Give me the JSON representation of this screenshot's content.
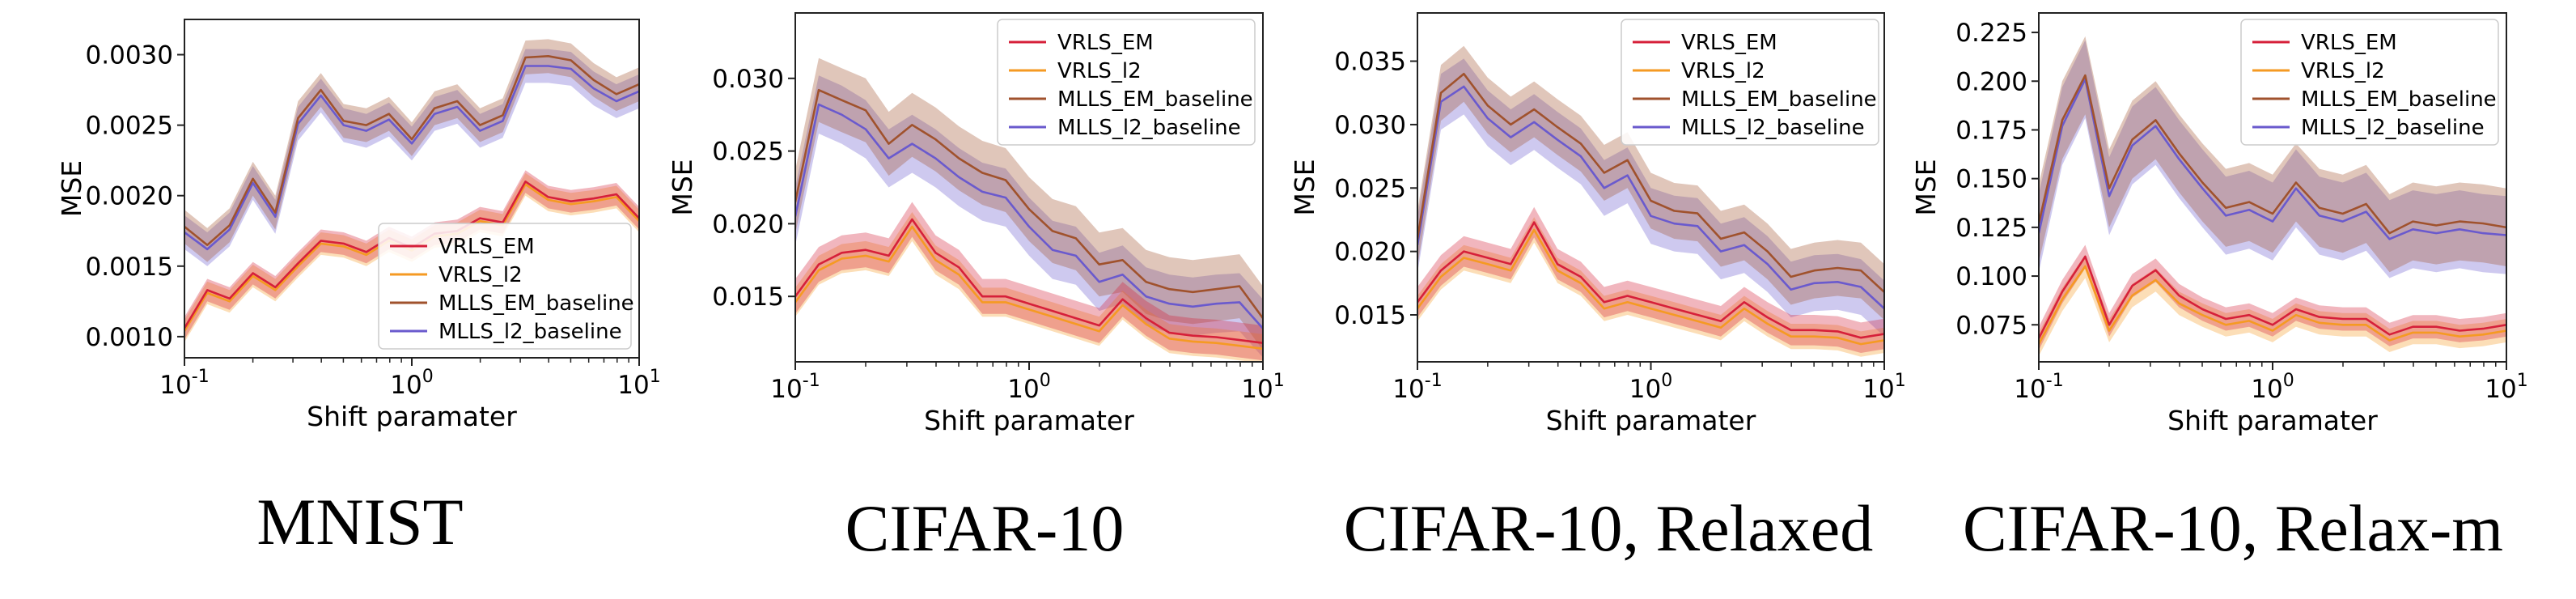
{
  "figure": {
    "captions": [
      "MNIST",
      "CIFAR-10",
      "CIFAR-10, Relaxed",
      "CIFAR-10, Relax-m"
    ]
  },
  "series_style": {
    "VRLS_EM": "#d6203a",
    "VRLS_l2": "#f59a23",
    "MLLS_EM_baseline": "#a0522d",
    "MLLS_l2_baseline": "#6a5acd"
  },
  "chart_data": [
    {
      "type": "line",
      "title": "MNIST",
      "xlabel": "Shift paramater",
      "ylabel": "MSE",
      "xscale": "log",
      "xlim": [
        0.1,
        10
      ],
      "ylim": [
        0.00085,
        0.00325
      ],
      "yticks": [
        "0.0010",
        "0.0015",
        "0.0020",
        "0.0025",
        "0.0030"
      ],
      "ytick_values": [
        0.001,
        0.0015,
        0.002,
        0.0025,
        0.003
      ],
      "xticks": [
        "10^-1",
        "10^0",
        "10^1"
      ],
      "legend": "lower-right",
      "x": [
        0.1,
        0.126,
        0.158,
        0.2,
        0.251,
        0.316,
        0.398,
        0.501,
        0.631,
        0.794,
        1.0,
        1.259,
        1.585,
        1.995,
        2.512,
        3.162,
        3.981,
        5.012,
        6.31,
        7.943,
        10.0
      ],
      "series": [
        {
          "name": "VRLS_EM",
          "values": [
            0.00106,
            0.00133,
            0.00127,
            0.00145,
            0.00135,
            0.00152,
            0.00168,
            0.00166,
            0.0016,
            0.0017,
            0.00163,
            0.00173,
            0.00175,
            0.00184,
            0.00181,
            0.0021,
            0.00199,
            0.00196,
            0.00198,
            0.00201,
            0.00184
          ],
          "band": 8e-05
        },
        {
          "name": "VRLS_l2",
          "values": [
            0.00104,
            0.00131,
            0.00125,
            0.00143,
            0.00133,
            0.0015,
            0.00166,
            0.00164,
            0.00158,
            0.00168,
            0.00161,
            0.00171,
            0.00173,
            0.00182,
            0.00179,
            0.00208,
            0.00197,
            0.00194,
            0.00196,
            0.00199,
            0.00182
          ],
          "band": 8e-05
        },
        {
          "name": "MLLS_EM_baseline",
          "values": [
            0.00178,
            0.00165,
            0.00179,
            0.00212,
            0.00188,
            0.00255,
            0.00275,
            0.00253,
            0.0025,
            0.00258,
            0.0024,
            0.00262,
            0.00267,
            0.0025,
            0.00257,
            0.00298,
            0.00299,
            0.00296,
            0.00282,
            0.00272,
            0.00279
          ],
          "band": 0.00012
        },
        {
          "name": "MLLS_l2_baseline",
          "values": [
            0.00174,
            0.00162,
            0.00176,
            0.00209,
            0.00185,
            0.00251,
            0.00271,
            0.0025,
            0.00246,
            0.00254,
            0.00237,
            0.00258,
            0.00263,
            0.00246,
            0.00253,
            0.00292,
            0.00292,
            0.0029,
            0.00276,
            0.00267,
            0.00274
          ],
          "band": 0.00012
        }
      ]
    },
    {
      "type": "line",
      "title": "CIFAR-10",
      "xlabel": "Shift paramater",
      "ylabel": "MSE",
      "xscale": "log",
      "xlim": [
        0.1,
        10
      ],
      "ylim": [
        0.0105,
        0.0345
      ],
      "yticks": [
        "0.015",
        "0.020",
        "0.025",
        "0.030"
      ],
      "ytick_values": [
        0.015,
        0.02,
        0.025,
        0.03
      ],
      "xticks": [
        "10^-1",
        "10^0",
        "10^1"
      ],
      "legend": "top-right",
      "x": [
        0.1,
        0.126,
        0.158,
        0.2,
        0.251,
        0.316,
        0.398,
        0.501,
        0.631,
        0.794,
        1.0,
        1.259,
        1.585,
        1.995,
        2.512,
        3.162,
        3.981,
        5.012,
        6.31,
        7.943,
        10.0
      ],
      "series": [
        {
          "name": "VRLS_EM",
          "values": [
            0.015,
            0.0172,
            0.018,
            0.0182,
            0.0178,
            0.0203,
            0.018,
            0.017,
            0.015,
            0.015,
            0.0145,
            0.014,
            0.0135,
            0.013,
            0.0148,
            0.0135,
            0.0125,
            0.0123,
            0.0122,
            0.012,
            0.0118
          ],
          "band": 0.0012
        },
        {
          "name": "VRLS_l2",
          "values": [
            0.0146,
            0.0168,
            0.0176,
            0.0178,
            0.0174,
            0.0198,
            0.0175,
            0.0165,
            0.0146,
            0.0146,
            0.0141,
            0.0136,
            0.0131,
            0.0126,
            0.0144,
            0.0131,
            0.0121,
            0.0119,
            0.0118,
            0.0116,
            0.0114
          ],
          "band": 0.001
        },
        {
          "name": "MLLS_EM_baseline",
          "values": [
            0.0215,
            0.0292,
            0.0285,
            0.0278,
            0.0255,
            0.0268,
            0.0258,
            0.0245,
            0.0235,
            0.023,
            0.021,
            0.0195,
            0.019,
            0.0172,
            0.0175,
            0.016,
            0.0155,
            0.0153,
            0.0155,
            0.0157,
            0.0135
          ],
          "band": 0.0022
        },
        {
          "name": "MLLS_l2_baseline",
          "values": [
            0.0205,
            0.0282,
            0.0275,
            0.0265,
            0.0245,
            0.0255,
            0.0245,
            0.0232,
            0.0222,
            0.0218,
            0.0198,
            0.0182,
            0.0178,
            0.016,
            0.0165,
            0.015,
            0.0145,
            0.0143,
            0.0145,
            0.0146,
            0.0128
          ],
          "band": 0.002
        }
      ]
    },
    {
      "type": "line",
      "title": "CIFAR-10, Relaxed",
      "xlabel": "Shift paramater",
      "ylabel": "MSE",
      "xscale": "log",
      "xlim": [
        0.1,
        10
      ],
      "ylim": [
        0.0113,
        0.0388
      ],
      "yticks": [
        "0.015",
        "0.020",
        "0.025",
        "0.030",
        "0.035"
      ],
      "ytick_values": [
        0.015,
        0.02,
        0.025,
        0.03,
        0.035
      ],
      "xticks": [
        "10^-1",
        "10^0",
        "10^1"
      ],
      "legend": "top-right",
      "x": [
        0.1,
        0.126,
        0.158,
        0.2,
        0.251,
        0.316,
        0.398,
        0.501,
        0.631,
        0.794,
        1.0,
        1.259,
        1.585,
        1.995,
        2.512,
        3.162,
        3.981,
        5.012,
        6.31,
        7.943,
        10.0
      ],
      "series": [
        {
          "name": "VRLS_EM",
          "values": [
            0.016,
            0.0185,
            0.02,
            0.0195,
            0.019,
            0.0223,
            0.019,
            0.018,
            0.016,
            0.0165,
            0.016,
            0.0155,
            0.015,
            0.0145,
            0.016,
            0.0148,
            0.0138,
            0.0138,
            0.0137,
            0.0132,
            0.0135
          ],
          "band": 0.0012
        },
        {
          "name": "VRLS_l2",
          "values": [
            0.0155,
            0.018,
            0.0195,
            0.019,
            0.0185,
            0.0217,
            0.0185,
            0.0175,
            0.0155,
            0.016,
            0.0155,
            0.015,
            0.0145,
            0.014,
            0.0155,
            0.0143,
            0.0133,
            0.0133,
            0.0132,
            0.0127,
            0.013
          ],
          "band": 0.001
        },
        {
          "name": "MLLS_EM_baseline",
          "values": [
            0.021,
            0.0325,
            0.034,
            0.0315,
            0.03,
            0.0312,
            0.0298,
            0.0285,
            0.0262,
            0.0272,
            0.024,
            0.0232,
            0.023,
            0.021,
            0.0215,
            0.02,
            0.018,
            0.0185,
            0.0187,
            0.0185,
            0.0168
          ],
          "band": 0.0022
        },
        {
          "name": "MLLS_l2_baseline",
          "values": [
            0.0205,
            0.0318,
            0.033,
            0.0305,
            0.029,
            0.0302,
            0.0288,
            0.0275,
            0.025,
            0.026,
            0.0228,
            0.0222,
            0.022,
            0.02,
            0.0205,
            0.019,
            0.017,
            0.0175,
            0.0176,
            0.0172,
            0.0155
          ],
          "band": 0.0022
        }
      ]
    },
    {
      "type": "line",
      "title": "CIFAR-10, Relax-m",
      "xlabel": "Shift paramater",
      "ylabel": "MSE",
      "xscale": "log",
      "xlim": [
        0.1,
        10
      ],
      "ylim": [
        0.056,
        0.235
      ],
      "yticks": [
        "0.075",
        "0.100",
        "0.125",
        "0.150",
        "0.175",
        "0.200",
        "0.225"
      ],
      "ytick_values": [
        0.075,
        0.1,
        0.125,
        0.15,
        0.175,
        0.2,
        0.225
      ],
      "xticks": [
        "10^-1",
        "10^0",
        "10^1"
      ],
      "legend": "top-right",
      "x": [
        0.1,
        0.126,
        0.158,
        0.2,
        0.251,
        0.316,
        0.398,
        0.501,
        0.631,
        0.794,
        1.0,
        1.259,
        1.585,
        1.995,
        2.512,
        3.162,
        3.981,
        5.012,
        6.31,
        7.943,
        10.0
      ],
      "series": [
        {
          "name": "VRLS_EM",
          "values": [
            0.068,
            0.092,
            0.11,
            0.075,
            0.095,
            0.103,
            0.09,
            0.083,
            0.078,
            0.08,
            0.075,
            0.083,
            0.079,
            0.078,
            0.078,
            0.07,
            0.074,
            0.074,
            0.072,
            0.073,
            0.075
          ],
          "band": 0.006
        },
        {
          "name": "VRLS_l2",
          "values": [
            0.065,
            0.088,
            0.105,
            0.072,
            0.09,
            0.098,
            0.086,
            0.08,
            0.075,
            0.077,
            0.072,
            0.08,
            0.076,
            0.075,
            0.075,
            0.067,
            0.071,
            0.071,
            0.069,
            0.07,
            0.072
          ],
          "band": 0.006
        },
        {
          "name": "MLLS_EM_baseline",
          "values": [
            0.127,
            0.18,
            0.203,
            0.145,
            0.17,
            0.18,
            0.163,
            0.148,
            0.135,
            0.138,
            0.132,
            0.148,
            0.135,
            0.132,
            0.137,
            0.122,
            0.128,
            0.126,
            0.128,
            0.127,
            0.125
          ],
          "band": 0.02
        },
        {
          "name": "MLLS_l2_baseline",
          "values": [
            0.122,
            0.177,
            0.201,
            0.141,
            0.167,
            0.177,
            0.16,
            0.145,
            0.131,
            0.134,
            0.128,
            0.145,
            0.131,
            0.128,
            0.133,
            0.119,
            0.124,
            0.122,
            0.124,
            0.122,
            0.121
          ],
          "band": 0.02
        }
      ]
    }
  ]
}
